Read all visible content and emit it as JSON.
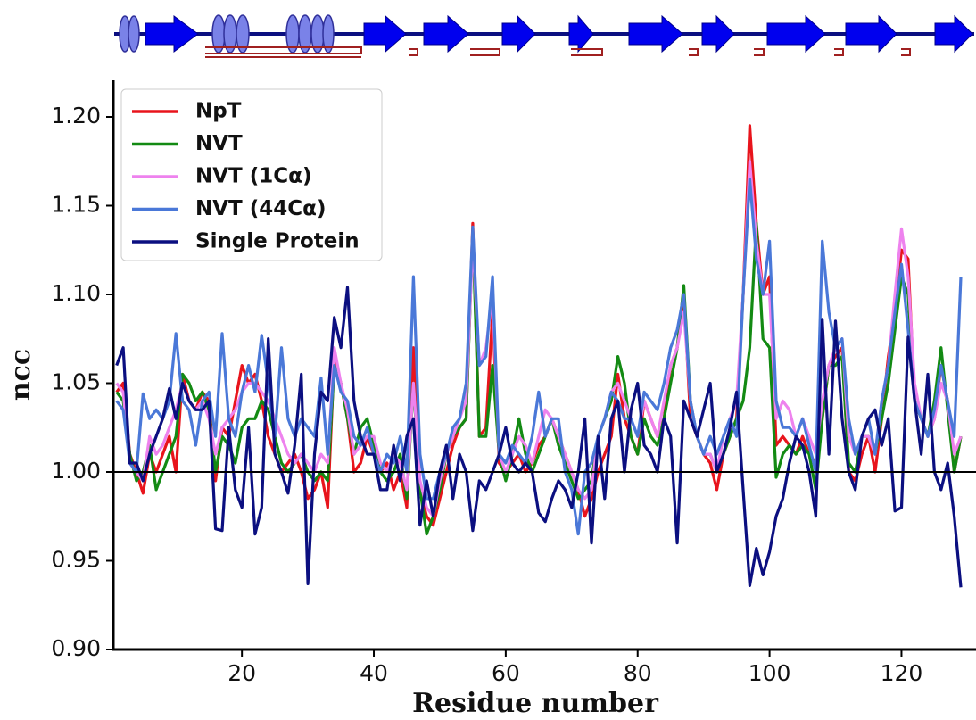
{
  "chart_data": {
    "type": "line",
    "xlabel": "Residue number",
    "ylabel": "ncc",
    "xlim": [
      0.5,
      131.3
    ],
    "ylim": [
      0.9,
      1.2206
    ],
    "xticks": [
      20,
      40,
      60,
      80,
      100,
      120
    ],
    "yticks": [
      {
        "value": 0.9,
        "label": "0.90"
      },
      0.95,
      {
        "value": 1.0,
        "label": "1.00"
      },
      1.05,
      {
        "value": 1.1,
        "label": "1.10"
      },
      1.15,
      {
        "value": 1.2,
        "label": "1.20"
      }
    ],
    "hline": 1.0,
    "legend": "upper left",
    "x": [
      1,
      2,
      3,
      4,
      5,
      6,
      7,
      8,
      9,
      10,
      11,
      12,
      13,
      14,
      15,
      16,
      17,
      18,
      19,
      20,
      21,
      22,
      23,
      24,
      25,
      26,
      27,
      28,
      29,
      30,
      31,
      32,
      33,
      34,
      35,
      36,
      37,
      38,
      39,
      40,
      41,
      42,
      43,
      44,
      45,
      46,
      47,
      48,
      49,
      50,
      51,
      52,
      53,
      54,
      55,
      56,
      57,
      58,
      59,
      60,
      61,
      62,
      63,
      64,
      65,
      66,
      67,
      68,
      69,
      70,
      71,
      72,
      73,
      74,
      75,
      76,
      77,
      78,
      79,
      80,
      81,
      82,
      83,
      84,
      85,
      86,
      87,
      88,
      89,
      90,
      91,
      92,
      93,
      94,
      95,
      96,
      97,
      98,
      99,
      100,
      101,
      102,
      103,
      104,
      105,
      106,
      107,
      108,
      109,
      110,
      111,
      112,
      113,
      114,
      115,
      116,
      117,
      118,
      119,
      120,
      121,
      122,
      123,
      124,
      125,
      126,
      127,
      128,
      129
    ],
    "series": [
      {
        "name": "NpT",
        "color": "#e8141c",
        "values": [
          1.045,
          1.05,
          1.01,
          1.0,
          0.988,
          1.01,
          1.0,
          1.01,
          1.02,
          1.0,
          1.055,
          1.04,
          1.035,
          1.045,
          1.04,
          0.995,
          1.025,
          1.02,
          1.04,
          1.06,
          1.05,
          1.055,
          1.04,
          1.02,
          1.01,
          1.0,
          1.005,
          1.01,
          1.0,
          0.985,
          0.99,
          1.0,
          0.98,
          1.065,
          1.05,
          1.03,
          1.0,
          1.005,
          1.02,
          1.01,
          1.0,
          1.005,
          0.99,
          1.0,
          0.98,
          1.07,
          0.99,
          0.975,
          0.97,
          0.985,
          1.0,
          1.015,
          1.025,
          1.03,
          1.14,
          1.02,
          1.025,
          1.09,
          1.005,
          1.0,
          1.005,
          1.01,
          1.0,
          1.005,
          1.015,
          1.02,
          1.03,
          1.02,
          1.01,
          1.0,
          0.99,
          0.975,
          0.985,
          1.0,
          1.01,
          1.02,
          1.055,
          1.03,
          1.02,
          1.01,
          1.04,
          1.03,
          1.02,
          1.03,
          1.06,
          1.07,
          1.1,
          1.03,
          1.02,
          1.01,
          1.005,
          0.99,
          1.01,
          1.02,
          1.03,
          1.1,
          1.195,
          1.14,
          1.1,
          1.11,
          1.015,
          1.02,
          1.015,
          1.01,
          1.02,
          1.01,
          1.005,
          1.03,
          1.06,
          1.065,
          1.07,
          1.0,
          0.995,
          1.01,
          1.02,
          1.0,
          1.03,
          1.065,
          1.09,
          1.125,
          1.12,
          1.04,
          1.03,
          1.02,
          1.03,
          1.06,
          1.04,
          1.0,
          1.02
        ]
      },
      {
        "name": "NVT",
        "color": "#138a13",
        "values": [
          1.045,
          1.04,
          1.01,
          0.995,
          1.0,
          1.015,
          0.99,
          1.0,
          1.01,
          1.02,
          1.055,
          1.05,
          1.04,
          1.045,
          1.035,
          1.0,
          1.02,
          1.015,
          1.005,
          1.025,
          1.03,
          1.03,
          1.04,
          1.035,
          1.02,
          1.005,
          1.0,
          1.005,
          1.01,
          1.0,
          0.995,
          1.0,
          0.995,
          1.06,
          1.05,
          1.03,
          1.01,
          1.025,
          1.03,
          1.015,
          1.0,
          0.995,
          1.0,
          1.01,
          0.985,
          1.05,
          0.99,
          0.965,
          0.975,
          0.99,
          1.01,
          1.02,
          1.025,
          1.03,
          1.135,
          1.02,
          1.02,
          1.06,
          1.01,
          0.995,
          1.01,
          1.03,
          1.01,
          1.0,
          1.01,
          1.02,
          1.03,
          1.015,
          1.005,
          0.995,
          0.985,
          0.99,
          0.995,
          1.02,
          1.03,
          1.04,
          1.065,
          1.05,
          1.02,
          1.01,
          1.03,
          1.02,
          1.015,
          1.03,
          1.05,
          1.07,
          1.105,
          1.04,
          1.02,
          1.01,
          1.01,
          1.0,
          1.01,
          1.02,
          1.03,
          1.04,
          1.07,
          1.14,
          1.075,
          1.07,
          0.997,
          1.01,
          1.015,
          1.01,
          1.015,
          1.01,
          0.99,
          1.03,
          1.06,
          1.06,
          1.065,
          1.005,
          1.0,
          1.02,
          1.02,
          1.01,
          1.03,
          1.05,
          1.08,
          1.11,
          1.1,
          1.04,
          1.03,
          1.02,
          1.04,
          1.07,
          1.035,
          1.0,
          1.02
        ]
      },
      {
        "name": "NVT (1Cα)",
        "color": "#ee82ee",
        "values": [
          1.05,
          1.045,
          1.005,
          1.0,
          0.995,
          1.02,
          1.01,
          1.015,
          1.025,
          1.035,
          1.05,
          1.04,
          1.035,
          1.04,
          1.03,
          1.01,
          1.025,
          1.03,
          1.035,
          1.045,
          1.05,
          1.05,
          1.045,
          1.04,
          1.03,
          1.02,
          1.01,
          1.005,
          1.01,
          1.005,
          1.0,
          1.01,
          1.005,
          1.07,
          1.05,
          1.035,
          1.01,
          1.015,
          1.02,
          1.02,
          1.005,
          1.0,
          1.01,
          1.005,
          0.99,
          1.05,
          0.995,
          0.98,
          0.975,
          0.995,
          1.01,
          1.02,
          1.03,
          1.04,
          1.13,
          1.06,
          1.07,
          1.1,
          1.01,
          1.0,
          1.01,
          1.02,
          1.015,
          1.005,
          1.02,
          1.035,
          1.03,
          1.02,
          1.01,
          1.0,
          0.99,
          0.985,
          0.99,
          1.02,
          1.03,
          1.045,
          1.05,
          1.04,
          1.03,
          1.02,
          1.04,
          1.03,
          1.02,
          1.04,
          1.06,
          1.07,
          1.09,
          1.04,
          1.02,
          1.01,
          1.01,
          1.0,
          1.02,
          1.03,
          1.04,
          1.1,
          1.175,
          1.13,
          1.1,
          1.1,
          1.03,
          1.04,
          1.035,
          1.02,
          1.03,
          1.02,
          1.01,
          1.04,
          1.06,
          1.07,
          1.075,
          1.02,
          1.01,
          1.02,
          1.02,
          1.01,
          1.04,
          1.06,
          1.1,
          1.137,
          1.11,
          1.05,
          1.03,
          1.02,
          1.03,
          1.05,
          1.04,
          1.01,
          1.02
        ]
      },
      {
        "name": "NVT (44Cα)",
        "color": "#4a78d8",
        "values": [
          1.04,
          1.035,
          1.005,
          1.0,
          1.044,
          1.03,
          1.035,
          1.03,
          1.04,
          1.078,
          1.04,
          1.035,
          1.015,
          1.04,
          1.045,
          1.02,
          1.078,
          1.03,
          1.02,
          1.045,
          1.06,
          1.045,
          1.077,
          1.05,
          1.02,
          1.07,
          1.03,
          1.02,
          1.03,
          1.025,
          1.02,
          1.053,
          1.01,
          1.06,
          1.045,
          1.04,
          1.02,
          1.015,
          1.025,
          1.01,
          1.0,
          1.01,
          1.005,
          1.02,
          1.0,
          1.11,
          1.01,
          0.985,
          0.985,
          1.0,
          1.01,
          1.025,
          1.03,
          1.05,
          1.138,
          1.06,
          1.065,
          1.11,
          1.01,
          1.005,
          1.015,
          1.01,
          1.005,
          1.02,
          1.045,
          1.02,
          1.03,
          1.03,
          1.0,
          0.99,
          0.965,
          1.0,
          1.005,
          1.02,
          1.03,
          1.045,
          1.04,
          1.03,
          1.03,
          1.02,
          1.045,
          1.04,
          1.035,
          1.05,
          1.07,
          1.08,
          1.1,
          1.04,
          1.02,
          1.01,
          1.02,
          1.01,
          1.02,
          1.03,
          1.02,
          1.1,
          1.165,
          1.12,
          1.1,
          1.13,
          1.04,
          1.025,
          1.025,
          1.02,
          1.03,
          1.015,
          1.0,
          1.13,
          1.09,
          1.07,
          1.075,
          1.03,
          1.01,
          1.02,
          1.03,
          1.01,
          1.04,
          1.06,
          1.09,
          1.117,
          1.08,
          1.04,
          1.03,
          1.02,
          1.035,
          1.06,
          1.04,
          1.02,
          1.11
        ]
      },
      {
        "name": "Single Protein",
        "color": "#0b0f80",
        "values": [
          1.06,
          1.07,
          1.005,
          1.005,
          0.995,
          1.01,
          1.02,
          1.03,
          1.047,
          1.03,
          1.05,
          1.04,
          1.035,
          1.035,
          1.04,
          0.968,
          0.967,
          1.025,
          0.99,
          0.98,
          1.025,
          0.965,
          0.98,
          1.075,
          1.01,
          1.0,
          0.988,
          1.015,
          1.055,
          0.937,
          1.01,
          1.045,
          1.04,
          1.087,
          1.07,
          1.104,
          1.04,
          1.02,
          1.01,
          1.01,
          0.99,
          0.99,
          1.015,
          0.995,
          1.02,
          1.03,
          0.97,
          0.995,
          0.975,
          1.0,
          1.015,
          0.985,
          1.01,
          1.0,
          0.967,
          0.995,
          0.99,
          1.0,
          1.01,
          1.025,
          1.005,
          1.0,
          1.005,
          1.0,
          0.977,
          0.972,
          0.985,
          0.995,
          0.99,
          0.98,
          1.0,
          1.03,
          0.96,
          1.02,
          0.985,
          1.03,
          1.04,
          1.0,
          1.035,
          1.05,
          1.015,
          1.01,
          1.0,
          1.03,
          1.02,
          0.96,
          1.04,
          1.03,
          1.02,
          1.035,
          1.05,
          1.0,
          1.01,
          1.025,
          1.045,
          0.99,
          0.936,
          0.957,
          0.942,
          0.955,
          0.975,
          0.985,
          1.005,
          1.02,
          1.015,
          1.0,
          0.975,
          1.086,
          1.01,
          1.085,
          1.03,
          1.0,
          0.99,
          1.02,
          1.03,
          1.035,
          1.015,
          1.03,
          0.978,
          0.98,
          1.076,
          1.04,
          1.01,
          1.055,
          1.0,
          0.99,
          1.005,
          0.975,
          0.935
        ]
      }
    ]
  }
}
